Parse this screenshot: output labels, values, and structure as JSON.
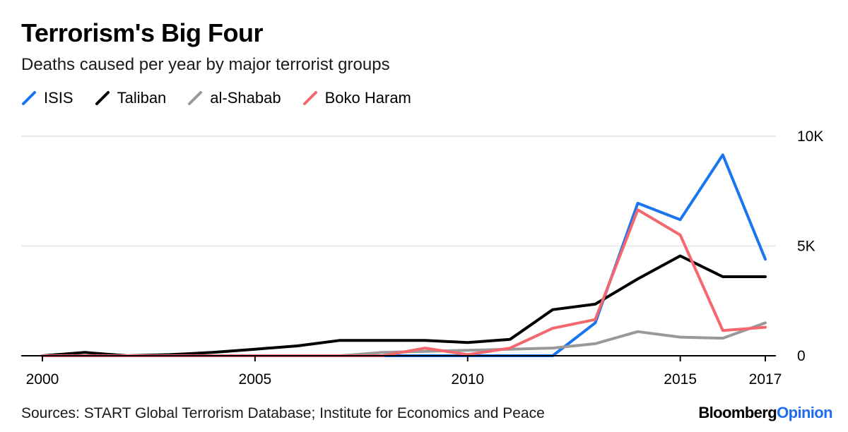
{
  "title": "Terrorism's Big Four",
  "subtitle": "Deaths caused per year by major terrorist groups",
  "source": "Sources: START Global Terrorism Database; Institute for Economics and Peace",
  "brand": {
    "part1": "Bloomberg",
    "part2": "Opinion",
    "part1_color": "#000000",
    "part2_color": "#1f6cf2"
  },
  "chart_data": {
    "type": "line",
    "title": "Terrorism's Big Four",
    "subtitle": "Deaths caused per year by major terrorist groups",
    "xlabel": "",
    "ylabel": "",
    "x": [
      2000,
      2001,
      2002,
      2003,
      2004,
      2005,
      2006,
      2007,
      2008,
      2009,
      2010,
      2011,
      2012,
      2013,
      2014,
      2015,
      2016,
      2017
    ],
    "xlim": [
      2000,
      2017
    ],
    "ylim": [
      0,
      10000
    ],
    "x_ticks": [
      2000,
      2005,
      2010,
      2015,
      2017
    ],
    "x_tick_labels": [
      "2000",
      "2005",
      "2010",
      "2015",
      "2017"
    ],
    "y_ticks": [
      0,
      5000,
      10000
    ],
    "y_tick_labels": [
      "0",
      "5K",
      "10K"
    ],
    "y_axis_side": "right",
    "grid": true,
    "legend_position": "top-left",
    "series": [
      {
        "name": "ISIS",
        "color": "#1a75f0",
        "values": [
          0,
          0,
          0,
          0,
          0,
          0,
          0,
          0,
          0,
          0,
          0,
          0,
          0,
          1500,
          6950,
          6200,
          9150,
          4400
        ]
      },
      {
        "name": "Taliban",
        "color": "#000000",
        "values": [
          0,
          150,
          0,
          50,
          150,
          300,
          450,
          700,
          700,
          700,
          600,
          750,
          2100,
          2350,
          3500,
          4550,
          3600,
          3600
        ]
      },
      {
        "name": "al-Shabab",
        "color": "#999999",
        "values": [
          0,
          0,
          0,
          0,
          0,
          0,
          0,
          0,
          150,
          200,
          250,
          300,
          350,
          550,
          1100,
          850,
          800,
          1500
        ]
      },
      {
        "name": "Boko Haram",
        "color": "#f2686e",
        "values": [
          0,
          0,
          0,
          0,
          0,
          0,
          0,
          0,
          0,
          350,
          50,
          350,
          1250,
          1650,
          6650,
          5500,
          1150,
          1300
        ]
      }
    ]
  }
}
